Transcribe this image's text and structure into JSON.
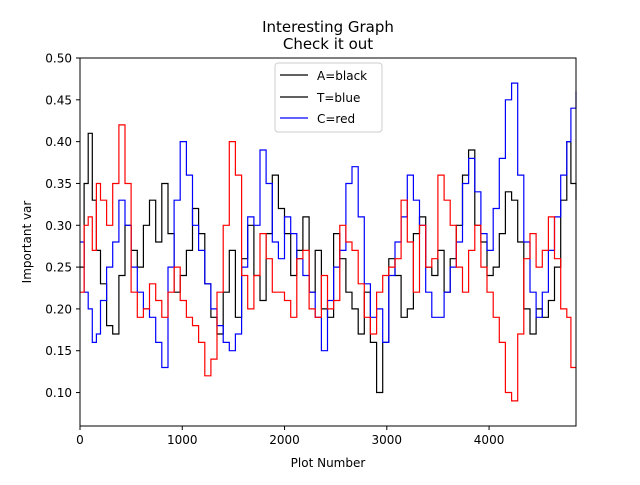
{
  "chart_data": {
    "type": "line",
    "title": "Interesting Graph",
    "subtitle": "Check it out",
    "xlabel": "Plot Number",
    "ylabel": "Important var",
    "xlim": [
      0,
      4850
    ],
    "ylim": [
      0.06,
      0.5
    ],
    "xticks": [
      0,
      1000,
      2000,
      3000,
      4000
    ],
    "yticks": [
      0.1,
      0.15,
      0.2,
      0.25,
      0.3,
      0.35,
      0.4,
      0.45,
      0.5
    ],
    "xtick_labels": [
      "0",
      "1000",
      "2000",
      "3000",
      "4000"
    ],
    "ytick_labels": [
      "0.10",
      "0.15",
      "0.20",
      "0.25",
      "0.30",
      "0.35",
      "0.40",
      "0.45",
      "0.50"
    ],
    "grid": false,
    "legend_position": "top-center",
    "legend": [
      "A=black",
      "T=blue",
      "C=red"
    ],
    "series": [
      {
        "name": "A=black",
        "color": "#000000",
        "x": [
          0,
          40,
          80,
          120,
          160,
          200,
          260,
          320,
          380,
          440,
          500,
          560,
          620,
          680,
          740,
          800,
          860,
          920,
          980,
          1040,
          1100,
          1160,
          1220,
          1280,
          1340,
          1400,
          1460,
          1520,
          1580,
          1640,
          1700,
          1760,
          1820,
          1880,
          1940,
          2000,
          2060,
          2120,
          2180,
          2240,
          2300,
          2360,
          2420,
          2480,
          2540,
          2600,
          2660,
          2720,
          2780,
          2840,
          2900,
          2960,
          3020,
          3080,
          3140,
          3200,
          3260,
          3320,
          3380,
          3440,
          3500,
          3560,
          3620,
          3680,
          3740,
          3800,
          3860,
          3920,
          3980,
          4040,
          4100,
          4160,
          4220,
          4280,
          4340,
          4400,
          4460,
          4520,
          4580,
          4640,
          4700,
          4760,
          4800,
          4850
        ],
        "y": [
          0.25,
          0.35,
          0.41,
          0.33,
          0.27,
          0.23,
          0.18,
          0.17,
          0.24,
          0.3,
          0.27,
          0.25,
          0.3,
          0.33,
          0.28,
          0.35,
          0.29,
          0.22,
          0.24,
          0.27,
          0.32,
          0.29,
          0.23,
          0.19,
          0.17,
          0.22,
          0.27,
          0.19,
          0.26,
          0.3,
          0.24,
          0.21,
          0.29,
          0.36,
          0.32,
          0.29,
          0.24,
          0.27,
          0.31,
          0.22,
          0.27,
          0.2,
          0.19,
          0.29,
          0.26,
          0.22,
          0.2,
          0.17,
          0.22,
          0.16,
          0.1,
          0.16,
          0.26,
          0.24,
          0.19,
          0.2,
          0.29,
          0.31,
          0.25,
          0.24,
          0.27,
          0.22,
          0.26,
          0.3,
          0.36,
          0.39,
          0.3,
          0.28,
          0.24,
          0.25,
          0.29,
          0.34,
          0.33,
          0.28,
          0.2,
          0.17,
          0.2,
          0.19,
          0.21,
          0.25,
          0.33,
          0.4,
          0.35,
          0.33
        ]
      },
      {
        "name": "T=blue",
        "color": "#0000ff",
        "x": [
          0,
          40,
          80,
          120,
          160,
          200,
          260,
          320,
          380,
          440,
          500,
          560,
          620,
          680,
          740,
          800,
          860,
          920,
          980,
          1040,
          1100,
          1160,
          1220,
          1280,
          1340,
          1400,
          1460,
          1520,
          1580,
          1640,
          1700,
          1760,
          1820,
          1880,
          1940,
          2000,
          2060,
          2120,
          2180,
          2240,
          2300,
          2360,
          2420,
          2480,
          2540,
          2600,
          2660,
          2720,
          2780,
          2840,
          2900,
          2960,
          3020,
          3080,
          3140,
          3200,
          3260,
          3320,
          3380,
          3440,
          3500,
          3560,
          3620,
          3680,
          3740,
          3800,
          3860,
          3920,
          3980,
          4040,
          4100,
          4160,
          4220,
          4280,
          4340,
          4400,
          4460,
          4520,
          4580,
          4640,
          4700,
          4760,
          4800,
          4850
        ],
        "y": [
          0.28,
          0.22,
          0.2,
          0.16,
          0.17,
          0.21,
          0.25,
          0.28,
          0.33,
          0.3,
          0.25,
          0.22,
          0.2,
          0.19,
          0.16,
          0.13,
          0.25,
          0.33,
          0.4,
          0.36,
          0.3,
          0.27,
          0.23,
          0.2,
          0.18,
          0.16,
          0.15,
          0.17,
          0.25,
          0.31,
          0.3,
          0.39,
          0.35,
          0.28,
          0.26,
          0.31,
          0.29,
          0.26,
          0.24,
          0.22,
          0.19,
          0.15,
          0.21,
          0.25,
          0.27,
          0.35,
          0.37,
          0.31,
          0.23,
          0.19,
          0.2,
          0.16,
          0.24,
          0.28,
          0.31,
          0.36,
          0.33,
          0.3,
          0.22,
          0.19,
          0.19,
          0.22,
          0.25,
          0.28,
          0.35,
          0.38,
          0.34,
          0.29,
          0.27,
          0.32,
          0.38,
          0.45,
          0.47,
          0.36,
          0.28,
          0.22,
          0.19,
          0.22,
          0.27,
          0.31,
          0.36,
          0.4,
          0.44,
          0.46
        ]
      },
      {
        "name": "C=red",
        "color": "#ff0000",
        "x": [
          0,
          40,
          80,
          120,
          160,
          200,
          260,
          320,
          380,
          440,
          500,
          560,
          620,
          680,
          740,
          800,
          860,
          920,
          980,
          1040,
          1100,
          1160,
          1220,
          1280,
          1340,
          1400,
          1460,
          1520,
          1580,
          1640,
          1700,
          1760,
          1820,
          1880,
          1940,
          2000,
          2060,
          2120,
          2180,
          2240,
          2300,
          2360,
          2420,
          2480,
          2540,
          2600,
          2660,
          2720,
          2780,
          2840,
          2900,
          2960,
          3020,
          3080,
          3140,
          3200,
          3260,
          3320,
          3380,
          3440,
          3500,
          3560,
          3620,
          3680,
          3740,
          3800,
          3860,
          3920,
          3980,
          4040,
          4100,
          4160,
          4220,
          4280,
          4340,
          4400,
          4460,
          4520,
          4580,
          4640,
          4700,
          4760,
          4800,
          4850
        ],
        "y": [
          0.22,
          0.3,
          0.31,
          0.27,
          0.35,
          0.33,
          0.3,
          0.35,
          0.42,
          0.35,
          0.22,
          0.19,
          0.2,
          0.23,
          0.21,
          0.19,
          0.22,
          0.25,
          0.21,
          0.19,
          0.18,
          0.16,
          0.12,
          0.14,
          0.22,
          0.3,
          0.4,
          0.36,
          0.24,
          0.2,
          0.24,
          0.29,
          0.26,
          0.22,
          0.22,
          0.21,
          0.19,
          0.26,
          0.27,
          0.2,
          0.19,
          0.24,
          0.2,
          0.21,
          0.3,
          0.28,
          0.27,
          0.23,
          0.19,
          0.17,
          0.22,
          0.24,
          0.25,
          0.26,
          0.33,
          0.28,
          0.22,
          0.3,
          0.25,
          0.26,
          0.36,
          0.33,
          0.3,
          0.25,
          0.22,
          0.27,
          0.3,
          0.25,
          0.22,
          0.19,
          0.16,
          0.1,
          0.09,
          0.17,
          0.26,
          0.29,
          0.25,
          0.27,
          0.31,
          0.26,
          0.2,
          0.19,
          0.13,
          0.13
        ]
      }
    ]
  }
}
